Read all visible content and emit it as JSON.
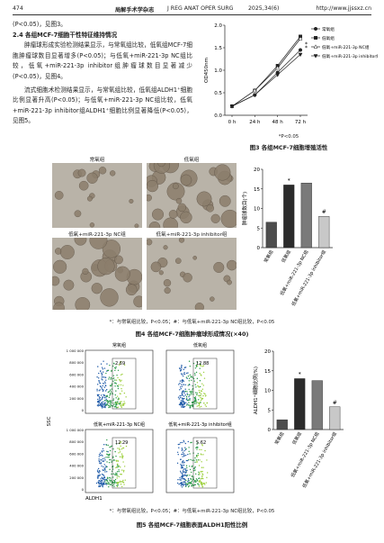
{
  "header": {
    "page": "474",
    "journal_cn": "局解手术学杂志",
    "journal_en": "J REG ANAT OPER SURG",
    "issue": "2025,34(6)",
    "url": "http://www.jjssxz.cn"
  },
  "body": {
    "p0": "(P<0.05)，见图3。",
    "heading": "2.4  各组MCF-7细胞干性特征维持情况",
    "p1": "肿瘤球形成实验检测结果显示，与常氧组比较，低氧组MCF-7细胞肿瘤球数目显著增多(P<0.05)；与低氧+miR-221-3p NC组比较，低氧+miR-221-3p inhibitor组肿瘤球数目显著减少(P<0.05)，见图4。",
    "p2": "流式细胞术检测结果显示，与常氧组比较，低氧组ALDH1⁺细胞比例显著升高(P<0.05)；与低氧+miR-221-3p NC组比较，低氧+miR-221-3p inhibitor组ALDH1⁺细胞比例显著降低(P<0.05)，见图5。"
  },
  "figure4": {
    "panels": [
      "常氧组",
      "低氧组",
      "低氧+miR-221-3p NC组",
      "低氧+miR-221-3p inhibitor组"
    ],
    "note": "*：与常氧组比较，P<0.05；#：与低氧+miR-221-3p NC组比较，P<0.05",
    "caption": "图4  各组MCF-7细胞肿瘤球形成情况(×40)"
  },
  "figure5": {
    "y_label": "SSC",
    "x_label": "ALDH1",
    "yticks": [
      "1 000 000",
      "800 000",
      "600 000",
      "400 000",
      "200 000",
      "0"
    ],
    "panels": [
      {
        "label": "常氧组",
        "percent": 2.69
      },
      {
        "label": "低氧组",
        "percent": 12.88
      },
      {
        "label": "低氧+miR-221-3p NC组",
        "percent": 12.29
      },
      {
        "label": "低氧+miR-221-3p inhibitor组",
        "percent": 5.62
      }
    ],
    "note": "*：与常氧组比较，P<0.05；#：与低氧+miR-221-3p NC组比较，P<0.05",
    "caption": "图5  各组MCF-7细胞表面ALDH1阳性比例"
  },
  "chart_data": [
    {
      "type": "line",
      "y_label": "OD450nm",
      "categories": [
        "0 h",
        "24 h",
        "48 h",
        "72 h"
      ],
      "series": [
        {
          "name": "常氧组",
          "color": "#222222",
          "values": [
            0.2,
            0.45,
            0.95,
            1.45
          ]
        },
        {
          "name": "低氧组",
          "color": "#222222",
          "values": [
            0.2,
            0.55,
            1.1,
            1.75
          ]
        },
        {
          "name": "低氧+miR-221-3p NC组",
          "color": "#222222",
          "values": [
            0.2,
            0.55,
            1.05,
            1.7
          ]
        },
        {
          "name": "低氧+miR-221-3p inhibitor组",
          "color": "#222222",
          "values": [
            0.2,
            0.45,
            0.9,
            1.35
          ]
        }
      ],
      "ylim": [
        0,
        2
      ],
      "yticks": [
        {
          "value": 0,
          "label": "0.0"
        },
        0.5,
        {
          "value": 1,
          "label": "1.0"
        },
        1.5,
        {
          "value": 2,
          "label": "2.0"
        }
      ],
      "annotations": [
        "*",
        "*"
      ],
      "note": "*P<0.05",
      "caption": "图3  各组MCF-7细胞增殖活性"
    },
    {
      "type": "bar",
      "y_label": "肿瘤球数目(个)",
      "categories": [
        "常氧组",
        "低氧组",
        "低氧+miR-221-3p NC组",
        "低氧+miR-221-3p inhibitor组"
      ],
      "values": [
        6.5,
        16,
        16.5,
        8
      ],
      "colors": [
        "#4d4d4d",
        "#2b2b2b",
        "#7a7a7a",
        "#c8c8c8"
      ],
      "markers": [
        null,
        "*",
        null,
        "#"
      ],
      "ylim": [
        0,
        20
      ],
      "yticks": [
        0,
        5,
        10,
        15,
        20
      ]
    },
    {
      "type": "bar",
      "y_label": "ALDH1⁺细胞比例(%)",
      "categories": [
        "常氧组",
        "低氧组",
        "低氧+miR-221-3p NC组",
        "低氧+miR-221-3p inhibitor组"
      ],
      "values": [
        2.5,
        13,
        12.5,
        5.8
      ],
      "colors": [
        "#4d4d4d",
        "#2b2b2b",
        "#7a7a7a",
        "#c8c8c8"
      ],
      "markers": [
        null,
        "*",
        null,
        "#"
      ],
      "ylim": [
        0,
        20
      ],
      "yticks": [
        0,
        5,
        10,
        15,
        20
      ]
    }
  ]
}
